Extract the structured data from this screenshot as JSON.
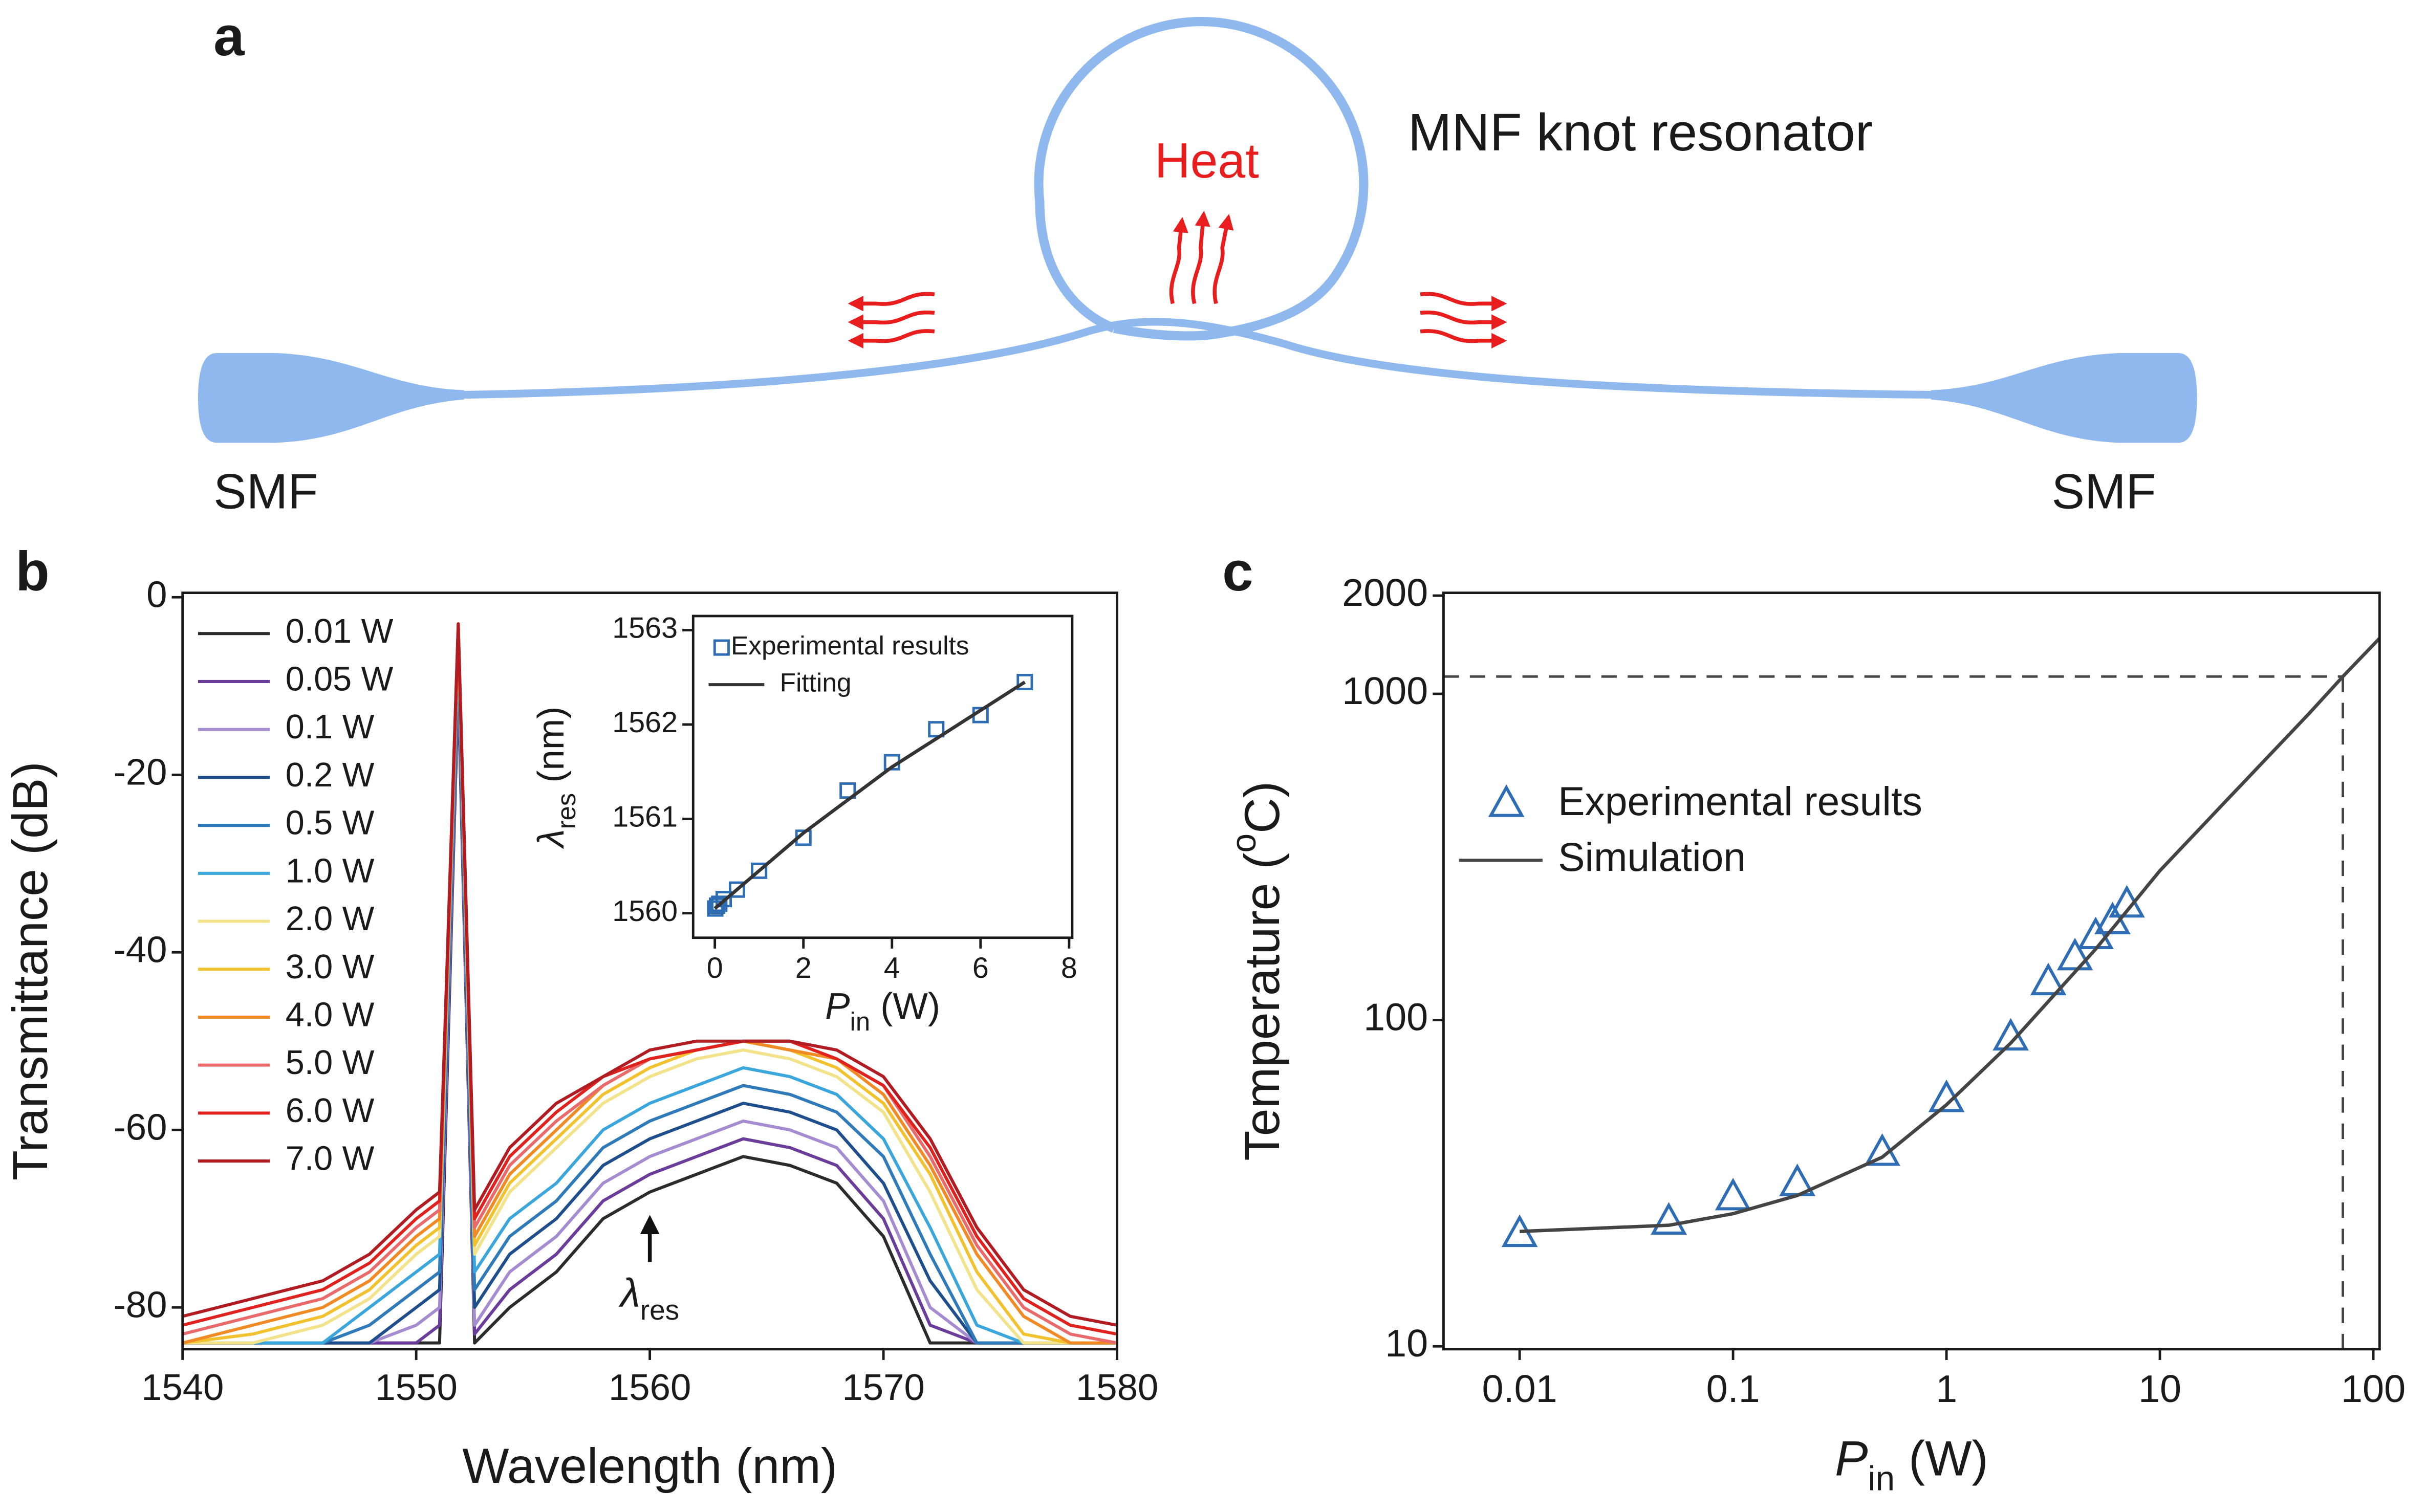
{
  "diagram": {
    "label": "a",
    "title": "MNF knot resonator",
    "heat": "Heat",
    "left": "SMF",
    "right": "SMF"
  },
  "chart_data": [
    {
      "type": "line",
      "panel": "b",
      "x": [
        1540,
        1543,
        1546,
        1548,
        1550,
        1551,
        1551.8,
        1552.5,
        1554,
        1556,
        1558,
        1560,
        1562,
        1564,
        1566,
        1568,
        1570,
        1572,
        1574,
        1576,
        1578,
        1580
      ],
      "series": [
        {
          "name": "0.01 W",
          "color": "#2b2b2b",
          "values": [
            -84,
            -84,
            -84,
            -84,
            -84,
            -84,
            -10,
            -84,
            -80,
            -76,
            -70,
            -67,
            -65,
            -63,
            -64,
            -66,
            -72,
            -84,
            -84,
            -84,
            -84,
            -84
          ]
        },
        {
          "name": "0.05 W",
          "color": "#6a3d9a",
          "values": [
            -84,
            -84,
            -84,
            -84,
            -84,
            -82,
            -9,
            -83,
            -78,
            -74,
            -68,
            -65,
            -63,
            -61,
            -62,
            -64,
            -70,
            -82,
            -84,
            -84,
            -84,
            -84
          ]
        },
        {
          "name": "0.1 W",
          "color": "#a58bd0",
          "values": [
            -84,
            -84,
            -84,
            -84,
            -82,
            -80,
            -8,
            -82,
            -76,
            -72,
            -66,
            -63,
            -61,
            -59,
            -60,
            -62,
            -68,
            -80,
            -84,
            -84,
            -84,
            -84
          ]
        },
        {
          "name": "0.2 W",
          "color": "#1f4e8c",
          "values": [
            -84,
            -84,
            -84,
            -84,
            -80,
            -78,
            -7,
            -80,
            -74,
            -70,
            -64,
            -61,
            -59,
            -57,
            -58,
            -60,
            -66,
            -77,
            -84,
            -84,
            -84,
            -84
          ]
        },
        {
          "name": "0.5 W",
          "color": "#2f7ab8",
          "values": [
            -84,
            -84,
            -84,
            -82,
            -78,
            -76,
            -6,
            -78,
            -72,
            -68,
            -62,
            -59,
            -57,
            -55,
            -56,
            -58,
            -63,
            -74,
            -84,
            -84,
            -84,
            -84
          ]
        },
        {
          "name": "1.0 W",
          "color": "#3aa6dc",
          "values": [
            -84,
            -84,
            -84,
            -80,
            -76,
            -74,
            -5,
            -76,
            -70,
            -66,
            -60,
            -57,
            -55,
            -53,
            -54,
            -56,
            -61,
            -71,
            -82,
            -84,
            -84,
            -84
          ]
        },
        {
          "name": "2.0 W",
          "color": "#f2e38a",
          "values": [
            -84,
            -84,
            -82,
            -79,
            -74,
            -72,
            -4,
            -74,
            -67,
            -62,
            -57,
            -54,
            -52,
            -51,
            -52,
            -54,
            -58,
            -67,
            -78,
            -84,
            -84,
            -84
          ]
        },
        {
          "name": "3.0 W",
          "color": "#f2c12e",
          "values": [
            -84,
            -83,
            -81,
            -78,
            -73,
            -71,
            -4,
            -73,
            -66,
            -61,
            -56,
            -53,
            -51,
            -50,
            -51,
            -53,
            -57,
            -65,
            -76,
            -83,
            -84,
            -84
          ]
        },
        {
          "name": "4.0 W",
          "color": "#f08a24",
          "values": [
            -84,
            -82,
            -80,
            -77,
            -72,
            -70,
            -4,
            -72,
            -65,
            -60,
            -55,
            -52,
            -51,
            -50,
            -51,
            -52,
            -56,
            -64,
            -74,
            -81,
            -84,
            -84
          ]
        },
        {
          "name": "5.0 W",
          "color": "#e86a6a",
          "values": [
            -83,
            -81,
            -79,
            -76,
            -71,
            -69,
            -3.5,
            -71,
            -64,
            -59,
            -55,
            -52,
            -51,
            -50,
            -50,
            -52,
            -55,
            -63,
            -73,
            -80,
            -83,
            -84
          ]
        },
        {
          "name": "6.0 W",
          "color": "#e0221e",
          "values": [
            -82,
            -80,
            -78,
            -75,
            -70,
            -68,
            -3,
            -70,
            -63,
            -58,
            -54,
            -52,
            -51,
            -50,
            -50,
            -52,
            -55,
            -62,
            -72,
            -79,
            -82,
            -83
          ]
        },
        {
          "name": "7.0 W",
          "color": "#b01c22",
          "values": [
            -81,
            -79,
            -77,
            -74,
            -69,
            -67,
            -3,
            -69,
            -62,
            -57,
            -54,
            -51,
            -50,
            -50,
            -50,
            -51,
            -54,
            -61,
            -71,
            -78,
            -81,
            -82
          ]
        }
      ],
      "xlim": [
        1540,
        1580
      ],
      "xticks": [
        1540,
        1550,
        1560,
        1570,
        1580
      ],
      "ylim": [
        -84.7,
        0.5
      ],
      "yticks": [
        -80,
        -60,
        -40,
        -20,
        0
      ],
      "x_label": "Wavelength (nm)",
      "y_label": "Transmittance (dB)",
      "legend": "upper left",
      "annotation": {
        "x": 1560,
        "y": -70,
        "symbol": "λ",
        "subscript": "res"
      }
    },
    {
      "type": "scatter",
      "series": [
        {
          "name": "Experimental results",
          "color": "#2e6db4",
          "marker": "square",
          "x": [
            0.01,
            0.05,
            0.1,
            0.2,
            0.5,
            1,
            2,
            3,
            4,
            5,
            6,
            7
          ],
          "values": [
            1560.05,
            1560.08,
            1560.1,
            1560.15,
            1560.25,
            1560.45,
            1560.8,
            1561.3,
            1561.6,
            1561.95,
            1562.1,
            1562.45
          ]
        },
        {
          "name": "Fitting",
          "color": "#333333",
          "marker": "none",
          "x": [
            0,
            1,
            2,
            3,
            4,
            5,
            6,
            7
          ],
          "values": [
            1560.05,
            1560.45,
            1560.85,
            1561.2,
            1561.55,
            1561.85,
            1562.15,
            1562.45
          ]
        }
      ],
      "xlim": [
        -0.49,
        8.07
      ],
      "xticks": [
        0,
        2,
        4,
        6,
        8
      ],
      "ylim": [
        1559.74,
        1563.15
      ],
      "yticks": [
        1560,
        1561,
        1562,
        1563
      ],
      "x_label": {
        "symbol": "P",
        "subscript": "in",
        "suffix": " (W)"
      },
      "y_label": {
        "symbol": "λ",
        "subscript": "res",
        "suffix": " (nm)"
      },
      "legend": "upper left"
    },
    {
      "type": "scatter",
      "panel": "c",
      "log_x": true,
      "log_y": true,
      "series": [
        {
          "name": "Experimental results",
          "color": "#2e6db4",
          "marker": "triangle",
          "x": [
            0.01,
            0.05,
            0.1,
            0.2,
            0.5,
            1,
            2,
            3,
            4,
            5,
            6,
            7
          ],
          "values": [
            22,
            24,
            28.5,
            31.5,
            39,
            57,
            88,
            130,
            155,
            180,
            200,
            225
          ]
        },
        {
          "name": "Simulation",
          "color": "#444444",
          "marker": "none",
          "x": [
            0.01,
            0.05,
            0.1,
            0.2,
            0.5,
            1,
            2,
            5,
            10,
            20,
            50,
            72,
            107
          ],
          "values": [
            22.5,
            23.5,
            25.5,
            29,
            38,
            55,
            85,
            165,
            287,
            463,
            870,
            1130,
            1480
          ]
        }
      ],
      "xlim": [
        0.0044,
        107
      ],
      "xticks": [
        0.01,
        0.1,
        1,
        10,
        100
      ],
      "ylim": [
        9.8,
        2040
      ],
      "yticks": [
        10,
        100,
        1000,
        2000
      ],
      "x_label": {
        "symbol": "P",
        "subscript": "in",
        "suffix": " (W)"
      },
      "y_label": {
        "text": "Temperature (",
        "superscript": "o",
        "suffix": "C)"
      },
      "legend": "center left",
      "reference": {
        "x": 72,
        "y": 1130
      }
    }
  ]
}
